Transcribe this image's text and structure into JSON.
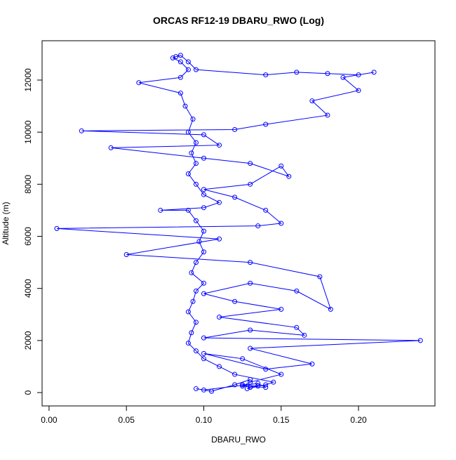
{
  "chart_data": {
    "type": "line",
    "title": "ORCAS RF12-19 DBARU_RWO (Log)",
    "x_label": "DBARU_RWO",
    "y_label": "Altitude (m)",
    "color": "#0000ff",
    "xlim": [
      -0.0045,
      0.2494
    ],
    "ylim": [
      -512,
      13510
    ],
    "xticks": [
      {
        "value": 0,
        "label": "0.00"
      },
      {
        "value": 0.05,
        "label": "0.05"
      },
      {
        "value": 0.1,
        "label": "0.10"
      },
      {
        "value": 0.15,
        "label": "0.15"
      },
      {
        "value": 0.2,
        "label": "0.20"
      }
    ],
    "yticks": [
      0,
      2000,
      4000,
      6000,
      8000,
      10000,
      12000
    ],
    "x": [
      0.13,
      0.125,
      0.135,
      0.128,
      0.14,
      0.145,
      0.12,
      0.11,
      0.1,
      0.095,
      0.09,
      0.092,
      0.095,
      0.09,
      0.093,
      0.095,
      0.1,
      0.092,
      0.095,
      0.1,
      0.097,
      0.1,
      0.095,
      0.09,
      0.072,
      0.1,
      0.11,
      0.1,
      0.095,
      0.09,
      0.095,
      0.092,
      0.095,
      0.09,
      0.093,
      0.088,
      0.085,
      0.058,
      0.085,
      0.09,
      0.085,
      0.08,
      0.082,
      0.085,
      0.09,
      0.095,
      0.14,
      0.16,
      0.18,
      0.2,
      0.21,
      0.19,
      0.2,
      0.17,
      0.18,
      0.14,
      0.12,
      0.021,
      0.1,
      0.11,
      0.04,
      0.1,
      0.13,
      0.155,
      0.15,
      0.13,
      0.1,
      0.12,
      0.14,
      0.15,
      0.135,
      0.005,
      0.11,
      0.05,
      0.13,
      0.175,
      0.182,
      0.16,
      0.13,
      0.1,
      0.12,
      0.15,
      0.11,
      0.16,
      0.165,
      0.13,
      0.1,
      0.24,
      0.13,
      0.17,
      0.14,
      0.1,
      0.125,
      0.15,
      0.13,
      0.125,
      0.14,
      0.135,
      0.1,
      0.095,
      0.105,
      0.12,
      0.13
    ],
    "values": [
      200,
      300,
      250,
      150,
      300,
      400,
      700,
      1000,
      1300,
      1600,
      1900,
      2300,
      2700,
      3100,
      3500,
      3900,
      4200,
      4600,
      5000,
      5400,
      5800,
      6200,
      6600,
      7000,
      7000,
      7100,
      7300,
      7600,
      8000,
      8400,
      8800,
      9200,
      9600,
      10000,
      10500,
      11000,
      11500,
      11900,
      12100,
      12400,
      12700,
      12850,
      12900,
      12950,
      12700,
      12400,
      12200,
      12300,
      12250,
      12200,
      12300,
      12100,
      11600,
      11200,
      10650,
      10300,
      10100,
      10050,
      9900,
      9500,
      9400,
      9000,
      8800,
      8300,
      8700,
      8000,
      7800,
      7500,
      7000,
      6500,
      6400,
      6300,
      5900,
      5300,
      5000,
      4450,
      3200,
      3900,
      4200,
      3800,
      3500,
      3200,
      2900,
      2500,
      2200,
      2400,
      2100,
      2000,
      1700,
      1100,
      900,
      1500,
      1300,
      700,
      400,
      250,
      200,
      350,
      100,
      150,
      50,
      300,
      500
    ]
  }
}
